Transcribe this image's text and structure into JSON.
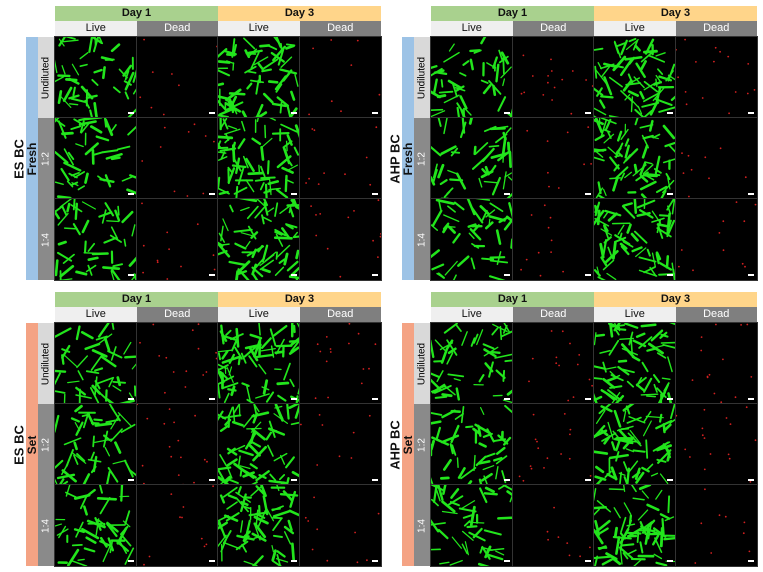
{
  "colors": {
    "day1": "#a9d18e",
    "day3": "#ffd58a",
    "live_header": "#efefef",
    "dead_header": "#7f7f7f",
    "fresh": "#9dc3e6",
    "set": "#f4a384",
    "live_cell": "#22e51c",
    "dead_cell": "#d42020"
  },
  "columns": {
    "day1": "Day 1",
    "day3": "Day 3",
    "live": "Live",
    "dead": "Dead"
  },
  "rows": [
    "Undiluted",
    "1:2",
    "1:4"
  ],
  "panels": [
    {
      "material": "ES BC",
      "condition": "Fresh"
    },
    {
      "material": "AHP BC",
      "condition": "Fresh"
    },
    {
      "material": "ES BC",
      "condition": "Set"
    },
    {
      "material": "AHP BC",
      "condition": "Set"
    }
  ]
}
